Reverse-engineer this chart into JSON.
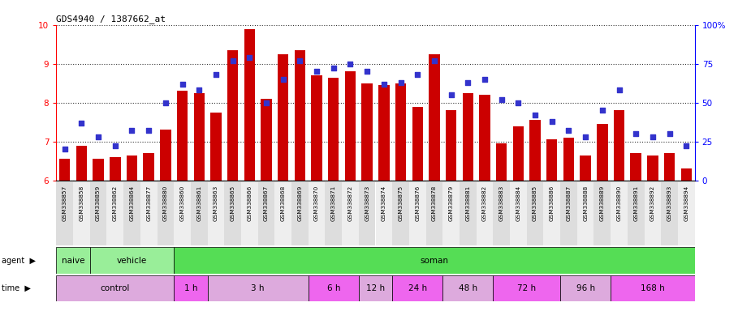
{
  "title": "GDS4940 / 1387662_at",
  "categories": [
    "GSM338857",
    "GSM338858",
    "GSM338859",
    "GSM338862",
    "GSM338864",
    "GSM338877",
    "GSM338880",
    "GSM338860",
    "GSM338861",
    "GSM338863",
    "GSM338865",
    "GSM338866",
    "GSM338867",
    "GSM338868",
    "GSM338869",
    "GSM338870",
    "GSM338871",
    "GSM338872",
    "GSM338873",
    "GSM338874",
    "GSM338875",
    "GSM338876",
    "GSM338878",
    "GSM338879",
    "GSM338881",
    "GSM338882",
    "GSM338883",
    "GSM338884",
    "GSM338885",
    "GSM338886",
    "GSM338887",
    "GSM338888",
    "GSM338889",
    "GSM338890",
    "GSM338891",
    "GSM338892",
    "GSM338893",
    "GSM338894"
  ],
  "bar_values": [
    6.55,
    6.9,
    6.55,
    6.6,
    6.65,
    6.7,
    7.3,
    8.3,
    8.25,
    7.75,
    9.35,
    9.9,
    8.1,
    9.25,
    9.35,
    8.7,
    8.65,
    8.8,
    8.5,
    8.45,
    8.5,
    7.9,
    9.25,
    7.8,
    8.25,
    8.2,
    6.95,
    7.4,
    7.55,
    7.05,
    7.1,
    6.65,
    7.45,
    7.8,
    6.7,
    6.65,
    6.7,
    6.3
  ],
  "percentile_values": [
    20,
    37,
    28,
    22,
    32,
    32,
    50,
    62,
    58,
    68,
    77,
    79,
    50,
    65,
    77,
    70,
    72,
    75,
    70,
    62,
    63,
    68,
    77,
    55,
    63,
    65,
    52,
    50,
    42,
    38,
    32,
    28,
    45,
    58,
    30,
    28,
    30,
    22
  ],
  "bar_color": "#cc0000",
  "dot_color": "#3333cc",
  "ylim_left": [
    6,
    10
  ],
  "ylim_right": [
    0,
    100
  ],
  "yticks_left": [
    6,
    7,
    8,
    9,
    10
  ],
  "yticks_right": [
    0,
    25,
    50,
    75,
    100
  ],
  "ytick_right_labels": [
    "0",
    "25",
    "50",
    "75",
    "100%"
  ],
  "agent_row_groups": [
    {
      "label": "naive",
      "start": 0,
      "end": 2,
      "color": "#99ee99"
    },
    {
      "label": "vehicle",
      "start": 2,
      "end": 7,
      "color": "#99ee99"
    },
    {
      "label": "soman",
      "start": 7,
      "end": 38,
      "color": "#55dd55"
    }
  ],
  "time_groups": [
    {
      "label": "control",
      "start": 0,
      "end": 7,
      "color": "#ddaadd"
    },
    {
      "label": "1 h",
      "start": 7,
      "end": 9,
      "color": "#ee66ee"
    },
    {
      "label": "3 h",
      "start": 9,
      "end": 15,
      "color": "#ddaadd"
    },
    {
      "label": "6 h",
      "start": 15,
      "end": 18,
      "color": "#ee66ee"
    },
    {
      "label": "12 h",
      "start": 18,
      "end": 20,
      "color": "#ddaadd"
    },
    {
      "label": "24 h",
      "start": 20,
      "end": 23,
      "color": "#ee66ee"
    },
    {
      "label": "48 h",
      "start": 23,
      "end": 26,
      "color": "#ddaadd"
    },
    {
      "label": "72 h",
      "start": 26,
      "end": 30,
      "color": "#ee66ee"
    },
    {
      "label": "96 h",
      "start": 30,
      "end": 33,
      "color": "#ddaadd"
    },
    {
      "label": "168 h",
      "start": 33,
      "end": 38,
      "color": "#ee66ee"
    }
  ],
  "background_color": "#ffffff",
  "xticklabel_bg_colors": [
    "#dddddd",
    "#eeeeee"
  ]
}
